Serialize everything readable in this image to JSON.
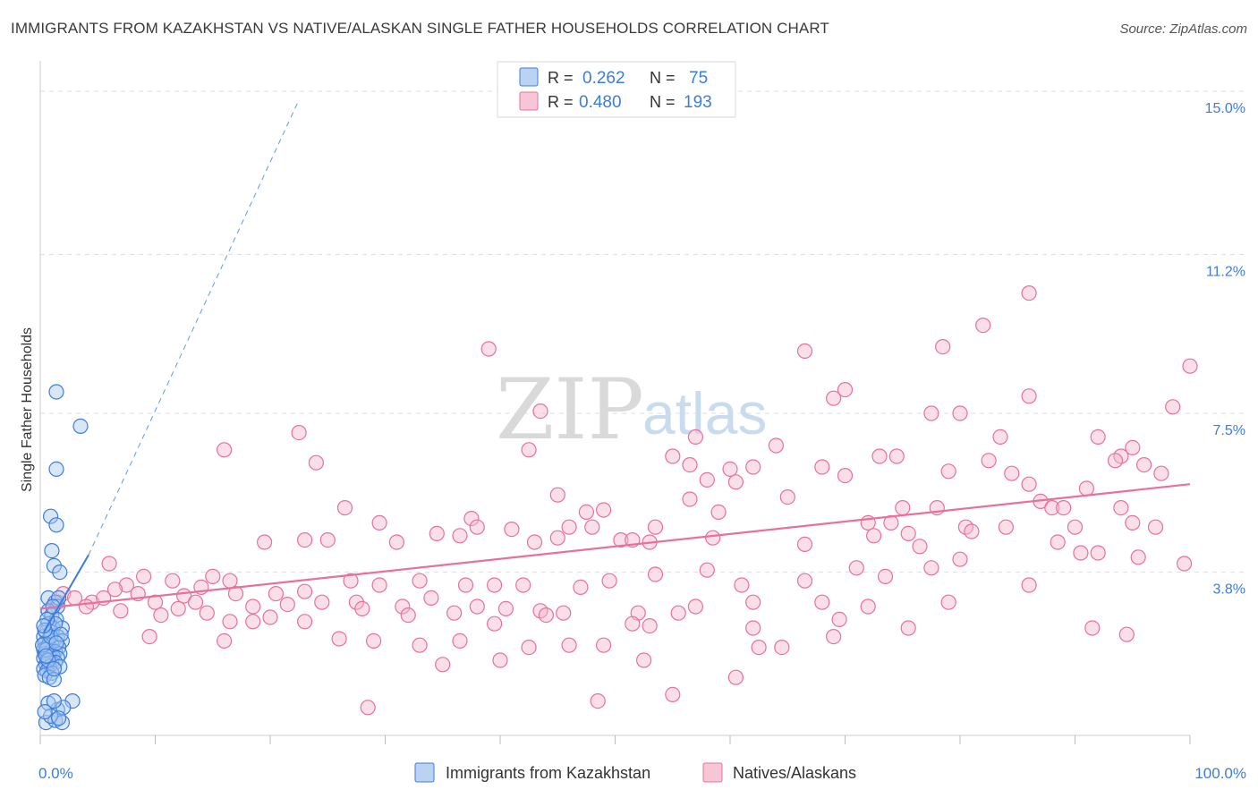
{
  "title": "IMMIGRANTS FROM KAZAKHSTAN VS NATIVE/ALASKAN SINGLE FATHER HOUSEHOLDS CORRELATION CHART",
  "source": "Source: ZipAtlas.com",
  "watermark": {
    "zip": "ZIP",
    "atlas": "atlas"
  },
  "colors": {
    "blue": "#3b7ddd",
    "blue_fill": "#a9c8f0",
    "pink": "#e8709a",
    "pink_fill": "#f5b8cb",
    "grid": "#dddddd"
  },
  "legend": {
    "rows": [
      {
        "series": "blue",
        "r_label": "R =",
        "r_value": "0.262",
        "n_label": "N =",
        "n_value": "75"
      },
      {
        "series": "pink",
        "r_label": "R =",
        "r_value": "0.480",
        "n_label": "N =",
        "n_value": "193"
      }
    ]
  },
  "chart_data": {
    "type": "scatter",
    "title": "IMMIGRANTS FROM KAZAKHSTAN VS NATIVE/ALASKAN SINGLE FATHER HOUSEHOLDS CORRELATION CHART",
    "xlabel": "",
    "ylabel": "Single Father Households",
    "xlim": [
      0,
      100
    ],
    "ylim": [
      0,
      15.5
    ],
    "x_tick_labels": [
      "0.0%",
      "100.0%"
    ],
    "y_ticks": [
      3.8,
      7.5,
      11.2,
      15.0
    ],
    "y_tick_labels": [
      "3.8%",
      "7.5%",
      "11.2%",
      "15.0%"
    ],
    "grid": true,
    "series": [
      {
        "name": "Immigrants from Kazakhstan",
        "color": "blue",
        "r": 0.262,
        "n": 75,
        "trend_solid": {
          "x": [
            0.3,
            4.2
          ],
          "y": [
            2.4,
            4.2
          ]
        },
        "trend_dashed": {
          "x": [
            4.2,
            22.5
          ],
          "y": [
            4.2,
            14.8
          ]
        },
        "points": [
          [
            1.4,
            8.0
          ],
          [
            3.5,
            7.2
          ],
          [
            1.4,
            6.2
          ],
          [
            0.9,
            5.1
          ],
          [
            1.4,
            4.9
          ],
          [
            1.0,
            4.3
          ],
          [
            1.2,
            3.95
          ],
          [
            1.7,
            3.8
          ],
          [
            0.7,
            3.2
          ],
          [
            1.3,
            3.1
          ],
          [
            1.5,
            3.0
          ],
          [
            0.7,
            2.9
          ],
          [
            1.0,
            2.8
          ],
          [
            1.4,
            2.7
          ],
          [
            0.7,
            2.6
          ],
          [
            1.1,
            2.5
          ],
          [
            1.9,
            2.5
          ],
          [
            0.5,
            2.4
          ],
          [
            1.0,
            2.4
          ],
          [
            1.5,
            2.3
          ],
          [
            0.3,
            2.3
          ],
          [
            0.8,
            2.25
          ],
          [
            1.2,
            2.2
          ],
          [
            1.9,
            2.2
          ],
          [
            0.4,
            2.15
          ],
          [
            0.7,
            2.1
          ],
          [
            1.0,
            2.1
          ],
          [
            1.6,
            2.05
          ],
          [
            0.3,
            2.0
          ],
          [
            0.6,
            2.0
          ],
          [
            0.9,
            1.95
          ],
          [
            1.3,
            1.95
          ],
          [
            1.7,
            1.9
          ],
          [
            0.4,
            1.9
          ],
          [
            0.8,
            1.85
          ],
          [
            1.1,
            1.85
          ],
          [
            1.5,
            1.8
          ],
          [
            0.3,
            1.8
          ],
          [
            0.6,
            1.75
          ],
          [
            1.0,
            1.7
          ],
          [
            1.3,
            1.7
          ],
          [
            0.5,
            1.65
          ],
          [
            0.8,
            1.6
          ],
          [
            1.7,
            1.6
          ],
          [
            0.3,
            1.55
          ],
          [
            0.6,
            1.5
          ],
          [
            1.0,
            1.45
          ],
          [
            0.4,
            1.4
          ],
          [
            0.8,
            1.35
          ],
          [
            1.2,
            1.3
          ],
          [
            0.5,
            2.0
          ],
          [
            0.2,
            2.1
          ],
          [
            0.9,
            2.3
          ],
          [
            1.3,
            2.6
          ],
          [
            0.6,
            2.7
          ],
          [
            1.6,
            3.2
          ],
          [
            1.1,
            3.0
          ],
          [
            0.4,
            2.45
          ],
          [
            1.8,
            2.35
          ],
          [
            0.7,
            1.75
          ],
          [
            1.2,
            1.55
          ],
          [
            0.5,
            1.85
          ],
          [
            1.4,
            2.15
          ],
          [
            0.3,
            2.55
          ],
          [
            2.8,
            0.8
          ],
          [
            1.5,
            0.6
          ],
          [
            2.0,
            0.65
          ],
          [
            0.7,
            0.75
          ],
          [
            1.2,
            0.8
          ],
          [
            0.5,
            0.3
          ],
          [
            1.3,
            0.35
          ],
          [
            1.9,
            0.3
          ],
          [
            0.9,
            0.45
          ],
          [
            1.6,
            0.4
          ],
          [
            0.4,
            0.55
          ]
        ]
      },
      {
        "name": "Natives/Alaskans",
        "color": "pink",
        "r": 0.48,
        "n": 193,
        "trend": {
          "x": [
            0,
            100
          ],
          "y": [
            2.95,
            5.85
          ]
        },
        "points": [
          [
            86,
            10.3
          ],
          [
            82,
            9.55
          ],
          [
            39,
            9.0
          ],
          [
            66.5,
            8.95
          ],
          [
            78.5,
            9.05
          ],
          [
            100,
            8.6
          ],
          [
            70,
            8.05
          ],
          [
            69,
            7.85
          ],
          [
            86,
            7.9
          ],
          [
            98.5,
            7.65
          ],
          [
            43.5,
            7.55
          ],
          [
            77.5,
            7.5
          ],
          [
            80,
            7.5
          ],
          [
            22.5,
            7.05
          ],
          [
            57,
            6.95
          ],
          [
            83.5,
            6.95
          ],
          [
            92,
            6.95
          ],
          [
            16,
            6.65
          ],
          [
            42.5,
            6.65
          ],
          [
            64,
            6.75
          ],
          [
            95,
            6.7
          ],
          [
            55,
            6.5
          ],
          [
            73,
            6.5
          ],
          [
            74.5,
            6.5
          ],
          [
            82.5,
            6.4
          ],
          [
            94,
            6.5
          ],
          [
            93.5,
            6.4
          ],
          [
            96,
            6.3
          ],
          [
            24,
            6.35
          ],
          [
            56.5,
            6.3
          ],
          [
            60,
            6.2
          ],
          [
            62,
            6.25
          ],
          [
            68,
            6.25
          ],
          [
            79,
            6.15
          ],
          [
            84.5,
            6.1
          ],
          [
            97.5,
            6.1
          ],
          [
            60.5,
            5.9
          ],
          [
            70,
            6.05
          ],
          [
            58,
            5.95
          ],
          [
            86,
            5.85
          ],
          [
            91,
            5.75
          ],
          [
            45,
            5.6
          ],
          [
            56.5,
            5.5
          ],
          [
            65,
            5.55
          ],
          [
            87,
            5.45
          ],
          [
            88,
            5.3
          ],
          [
            37.5,
            5.05
          ],
          [
            47.5,
            5.2
          ],
          [
            49,
            5.25
          ],
          [
            59,
            5.2
          ],
          [
            75,
            5.3
          ],
          [
            78,
            5.3
          ],
          [
            89,
            5.3
          ],
          [
            94,
            5.3
          ],
          [
            26.5,
            5.3
          ],
          [
            29.5,
            4.95
          ],
          [
            38,
            4.85
          ],
          [
            46,
            4.85
          ],
          [
            48,
            4.85
          ],
          [
            53.5,
            4.85
          ],
          [
            74,
            4.95
          ],
          [
            84,
            4.85
          ],
          [
            90,
            4.85
          ],
          [
            95,
            4.95
          ],
          [
            97,
            4.85
          ],
          [
            72,
            4.95
          ],
          [
            72.5,
            4.65
          ],
          [
            75.5,
            4.7
          ],
          [
            80.5,
            4.85
          ],
          [
            81,
            4.75
          ],
          [
            19.5,
            4.5
          ],
          [
            23,
            4.55
          ],
          [
            25,
            4.55
          ],
          [
            31,
            4.5
          ],
          [
            34.5,
            4.7
          ],
          [
            36.5,
            4.65
          ],
          [
            41,
            4.8
          ],
          [
            43,
            4.5
          ],
          [
            45,
            4.6
          ],
          [
            50.5,
            4.55
          ],
          [
            51.5,
            4.55
          ],
          [
            53,
            4.5
          ],
          [
            58.5,
            4.6
          ],
          [
            66.5,
            4.45
          ],
          [
            76.5,
            4.4
          ],
          [
            88.5,
            4.5
          ],
          [
            90.5,
            4.25
          ],
          [
            92,
            4.25
          ],
          [
            95.5,
            4.15
          ],
          [
            99.5,
            4.0
          ],
          [
            6,
            4.0
          ],
          [
            7.5,
            3.5
          ],
          [
            9,
            3.7
          ],
          [
            11.5,
            3.6
          ],
          [
            14,
            3.45
          ],
          [
            15,
            3.7
          ],
          [
            16.5,
            3.6
          ],
          [
            20.5,
            3.3
          ],
          [
            23,
            3.35
          ],
          [
            27,
            3.6
          ],
          [
            29.5,
            3.5
          ],
          [
            33,
            3.6
          ],
          [
            37,
            3.5
          ],
          [
            39.5,
            3.5
          ],
          [
            42,
            3.5
          ],
          [
            47,
            3.45
          ],
          [
            49.5,
            3.6
          ],
          [
            53.5,
            3.75
          ],
          [
            58,
            3.85
          ],
          [
            61,
            3.5
          ],
          [
            66.5,
            3.6
          ],
          [
            71,
            3.9
          ],
          [
            73.5,
            3.7
          ],
          [
            77.5,
            3.9
          ],
          [
            80,
            4.1
          ],
          [
            86,
            3.5
          ],
          [
            2,
            3.3
          ],
          [
            3,
            3.2
          ],
          [
            4.5,
            3.1
          ],
          [
            5.5,
            3.2
          ],
          [
            6.5,
            3.4
          ],
          [
            8.5,
            3.3
          ],
          [
            10,
            3.1
          ],
          [
            12.5,
            3.25
          ],
          [
            13.5,
            3.1
          ],
          [
            17,
            3.3
          ],
          [
            18.5,
            3.0
          ],
          [
            21.5,
            3.05
          ],
          [
            24.5,
            3.1
          ],
          [
            27.5,
            3.1
          ],
          [
            31.5,
            3.0
          ],
          [
            34,
            3.2
          ],
          [
            38,
            3.0
          ],
          [
            40.5,
            2.95
          ],
          [
            43.5,
            2.9
          ],
          [
            45.5,
            2.85
          ],
          [
            52,
            2.85
          ],
          [
            55.5,
            2.85
          ],
          [
            57,
            3.0
          ],
          [
            62,
            3.1
          ],
          [
            68,
            3.1
          ],
          [
            72,
            3.0
          ],
          [
            79,
            3.1
          ],
          [
            4,
            3.0
          ],
          [
            1.5,
            3.1
          ],
          [
            7,
            2.9
          ],
          [
            10.5,
            2.8
          ],
          [
            12,
            2.95
          ],
          [
            14.5,
            2.85
          ],
          [
            16.5,
            2.65
          ],
          [
            18.5,
            2.65
          ],
          [
            20,
            2.75
          ],
          [
            23,
            2.65
          ],
          [
            28,
            2.95
          ],
          [
            32,
            2.8
          ],
          [
            36,
            2.85
          ],
          [
            39.5,
            2.6
          ],
          [
            44,
            2.8
          ],
          [
            51.5,
            2.6
          ],
          [
            53,
            2.55
          ],
          [
            62,
            2.5
          ],
          [
            69.5,
            2.7
          ],
          [
            75.5,
            2.5
          ],
          [
            91.5,
            2.5
          ],
          [
            94.5,
            2.35
          ],
          [
            9.5,
            2.3
          ],
          [
            16,
            2.2
          ],
          [
            26,
            2.25
          ],
          [
            29,
            2.2
          ],
          [
            33,
            2.1
          ],
          [
            36.5,
            2.2
          ],
          [
            42.5,
            2.05
          ],
          [
            46,
            2.1
          ],
          [
            49,
            2.1
          ],
          [
            62.5,
            2.05
          ],
          [
            64.5,
            2.05
          ],
          [
            69,
            2.3
          ],
          [
            35,
            1.65
          ],
          [
            40,
            1.75
          ],
          [
            52.5,
            1.75
          ],
          [
            60.5,
            1.35
          ],
          [
            55,
            0.95
          ],
          [
            48.5,
            0.8
          ],
          [
            28.5,
            0.65
          ]
        ]
      }
    ]
  },
  "bottom_legend": [
    {
      "series": "blue",
      "label": "Immigrants from Kazakhstan"
    },
    {
      "series": "pink",
      "label": "Natives/Alaskans"
    }
  ]
}
